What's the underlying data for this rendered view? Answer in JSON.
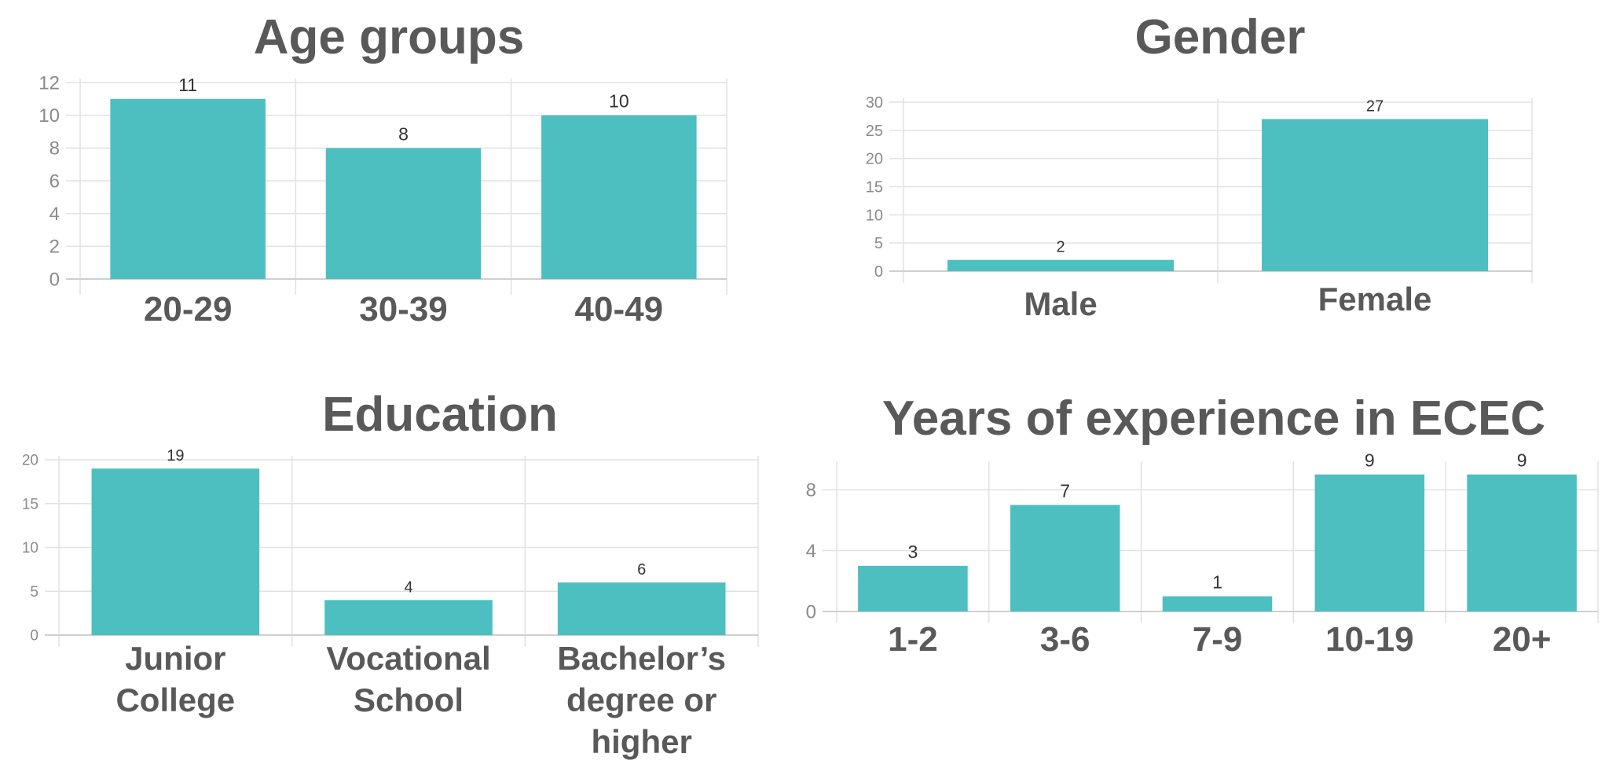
{
  "colors": {
    "bar": "#4dbfc1",
    "title": "#595959",
    "grid": "#e2e2e2"
  },
  "chart_data": [
    {
      "type": "bar",
      "title": "Age groups",
      "categories": [
        "20-29",
        "30-39",
        "40-49"
      ],
      "values": [
        11,
        8,
        10
      ],
      "yticks": [
        0,
        2,
        4,
        6,
        8,
        10,
        12
      ],
      "ylim": [
        0,
        12
      ],
      "grid": true,
      "xlabel": "",
      "ylabel": ""
    },
    {
      "type": "bar",
      "title": "Gender",
      "categories": [
        "Male",
        "Female"
      ],
      "values": [
        2,
        27
      ],
      "yticks": [
        0,
        5,
        10,
        15,
        20,
        25,
        30
      ],
      "ylim": [
        0,
        30
      ],
      "grid": true,
      "xlabel": "",
      "ylabel": ""
    },
    {
      "type": "bar",
      "title": "Education",
      "categories": [
        "Junior College",
        "Vocational School",
        "Bachelor’s degree or higher"
      ],
      "values": [
        19,
        4,
        6
      ],
      "yticks": [
        0,
        5,
        10,
        15,
        20
      ],
      "ylim": [
        0,
        20
      ],
      "grid": true,
      "xlabel": "",
      "ylabel": ""
    },
    {
      "type": "bar",
      "title": "Years of experience in ECEC",
      "categories": [
        "1-2",
        "3-6",
        "7-9",
        "10-19",
        "20+"
      ],
      "values": [
        3,
        7,
        1,
        9,
        9
      ],
      "yticks": [
        0,
        4,
        8
      ],
      "ylim": [
        0,
        9.6
      ],
      "grid": true,
      "xlabel": "",
      "ylabel": ""
    }
  ]
}
